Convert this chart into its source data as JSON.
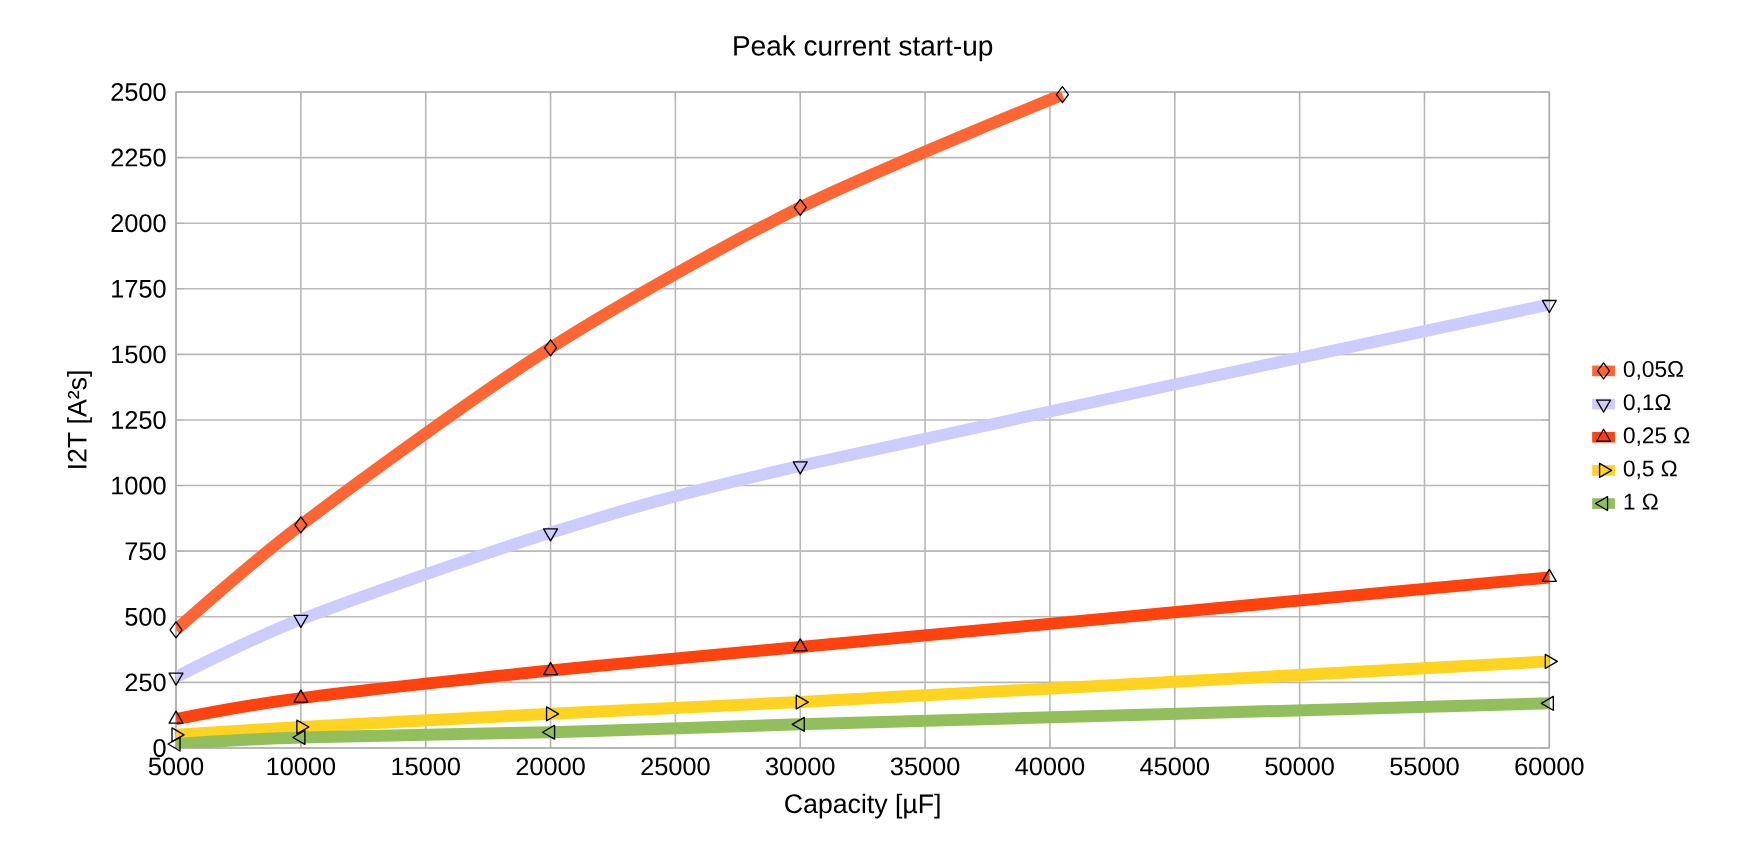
{
  "chart_data": {
    "type": "line",
    "title": "Peak current start-up",
    "xlabel": "Capacity [µF]",
    "ylabel": "I2T [A²s]",
    "x": [
      5000,
      10000,
      20000,
      30000,
      60000
    ],
    "xlim": [
      5000,
      60000
    ],
    "ylim": [
      0,
      2500
    ],
    "xticks": [
      5000,
      10000,
      15000,
      20000,
      25000,
      30000,
      35000,
      40000,
      45000,
      50000,
      55000,
      60000
    ],
    "yticks": [
      0,
      250,
      500,
      750,
      1000,
      1250,
      1500,
      1750,
      2000,
      2250,
      2500
    ],
    "grid": true,
    "legend": "right",
    "series": [
      {
        "name": "0,05Ω",
        "color": "#ff6633",
        "marker": "diamond",
        "x": [
          5000,
          10000,
          20000,
          30000,
          40500
        ],
        "values": [
          450,
          850,
          1525,
          2060,
          2490
        ]
      },
      {
        "name": "0,1Ω",
        "color": "#ccccff",
        "marker": "triangle-down",
        "values": [
          270,
          490,
          820,
          1075,
          1690
        ]
      },
      {
        "name": "0,25 Ω",
        "color": "#ff420e",
        "marker": "triangle",
        "values": [
          110,
          190,
          295,
          385,
          650
        ]
      },
      {
        "name": "0,5 Ω",
        "color": "#ffd320",
        "marker": "triangle-right",
        "values": [
          50,
          80,
          130,
          175,
          330
        ]
      },
      {
        "name": "1 Ω",
        "color": "#92bf5b",
        "marker": "triangle-left",
        "values": [
          15,
          40,
          60,
          90,
          170
        ]
      }
    ]
  }
}
